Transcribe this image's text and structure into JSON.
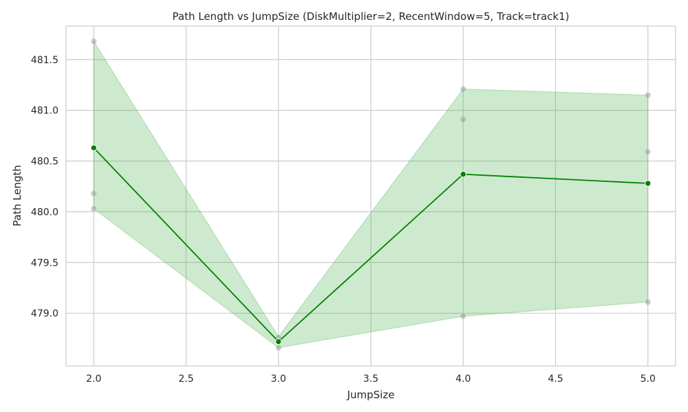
{
  "chart_data": {
    "type": "line",
    "title": "Path Length vs JumpSize (DiskMultiplier=2, RecentWindow=5, Track=track1)",
    "xlabel": "JumpSize",
    "ylabel": "Path Length",
    "xlim": [
      1.85,
      5.15
    ],
    "ylim": [
      478.48,
      481.83
    ],
    "x_ticks": [
      2.0,
      2.5,
      3.0,
      3.5,
      4.0,
      4.5,
      5.0
    ],
    "x_tick_labels": [
      "2.0",
      "2.5",
      "3.0",
      "3.5",
      "4.0",
      "4.5",
      "5.0"
    ],
    "y_ticks": [
      479.0,
      479.5,
      480.0,
      480.5,
      481.0,
      481.5
    ],
    "y_tick_labels": [
      "479.0",
      "479.5",
      "480.0",
      "480.5",
      "481.0",
      "481.5"
    ],
    "grid": true,
    "series": [
      {
        "x": [
          2.0,
          3.0,
          4.0,
          5.0
        ],
        "values": [
          480.63,
          478.72,
          480.37,
          480.28
        ],
        "color": "#008000"
      }
    ],
    "band": {
      "x": [
        2.0,
        3.0,
        4.0,
        5.0
      ],
      "lower": [
        480.03,
        478.66,
        478.97,
        479.11
      ],
      "upper": [
        481.68,
        478.77,
        481.21,
        481.15
      ],
      "color": "#4caf50"
    },
    "raw_points": {
      "x": [
        2.0,
        2.0,
        2.0,
        3.0,
        3.0,
        4.0,
        4.0,
        4.0,
        5.0,
        5.0,
        5.0
      ],
      "y": [
        481.68,
        480.18,
        480.03,
        478.76,
        478.66,
        481.21,
        480.91,
        478.97,
        481.15,
        480.59,
        479.11
      ],
      "color": "#9e9e9e"
    }
  }
}
